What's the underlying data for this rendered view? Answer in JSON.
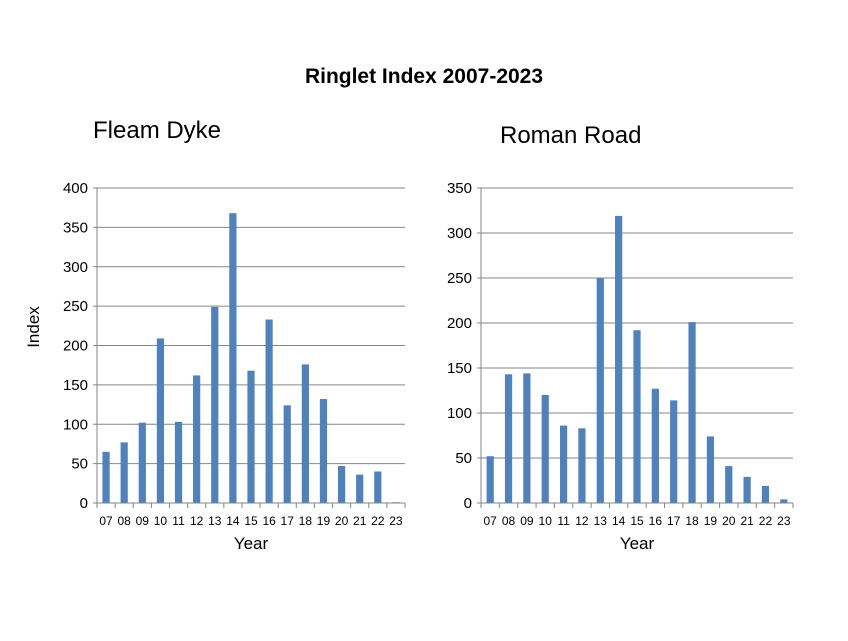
{
  "title": "Ringlet Index 2007-2023",
  "chart_data": [
    {
      "type": "bar",
      "title": "Fleam Dyke",
      "xlabel": "Year",
      "ylabel": "Index",
      "ylim": [
        0,
        400
      ],
      "yticks": [
        0,
        50,
        100,
        150,
        200,
        250,
        300,
        350,
        400
      ],
      "grid": true,
      "color": "#4f81bd",
      "categories": [
        "07",
        "08",
        "09",
        "10",
        "11",
        "12",
        "13",
        "14",
        "15",
        "16",
        "17",
        "18",
        "19",
        "20",
        "21",
        "22",
        "23"
      ],
      "values": [
        65,
        77,
        102,
        209,
        103,
        162,
        249,
        368,
        168,
        233,
        124,
        176,
        132,
        47,
        36,
        40,
        1
      ]
    },
    {
      "type": "bar",
      "title": "Roman Road",
      "xlabel": "Year",
      "ylabel": "",
      "ylim": [
        0,
        350
      ],
      "yticks": [
        0,
        50,
        100,
        150,
        200,
        250,
        300,
        350
      ],
      "grid": true,
      "color": "#4f81bd",
      "categories": [
        "07",
        "08",
        "09",
        "10",
        "11",
        "12",
        "13",
        "14",
        "15",
        "16",
        "17",
        "18",
        "19",
        "20",
        "21",
        "22",
        "23"
      ],
      "values": [
        52,
        143,
        144,
        120,
        86,
        83,
        250,
        319,
        192,
        127,
        114,
        201,
        74,
        41,
        29,
        19,
        4
      ]
    }
  ]
}
